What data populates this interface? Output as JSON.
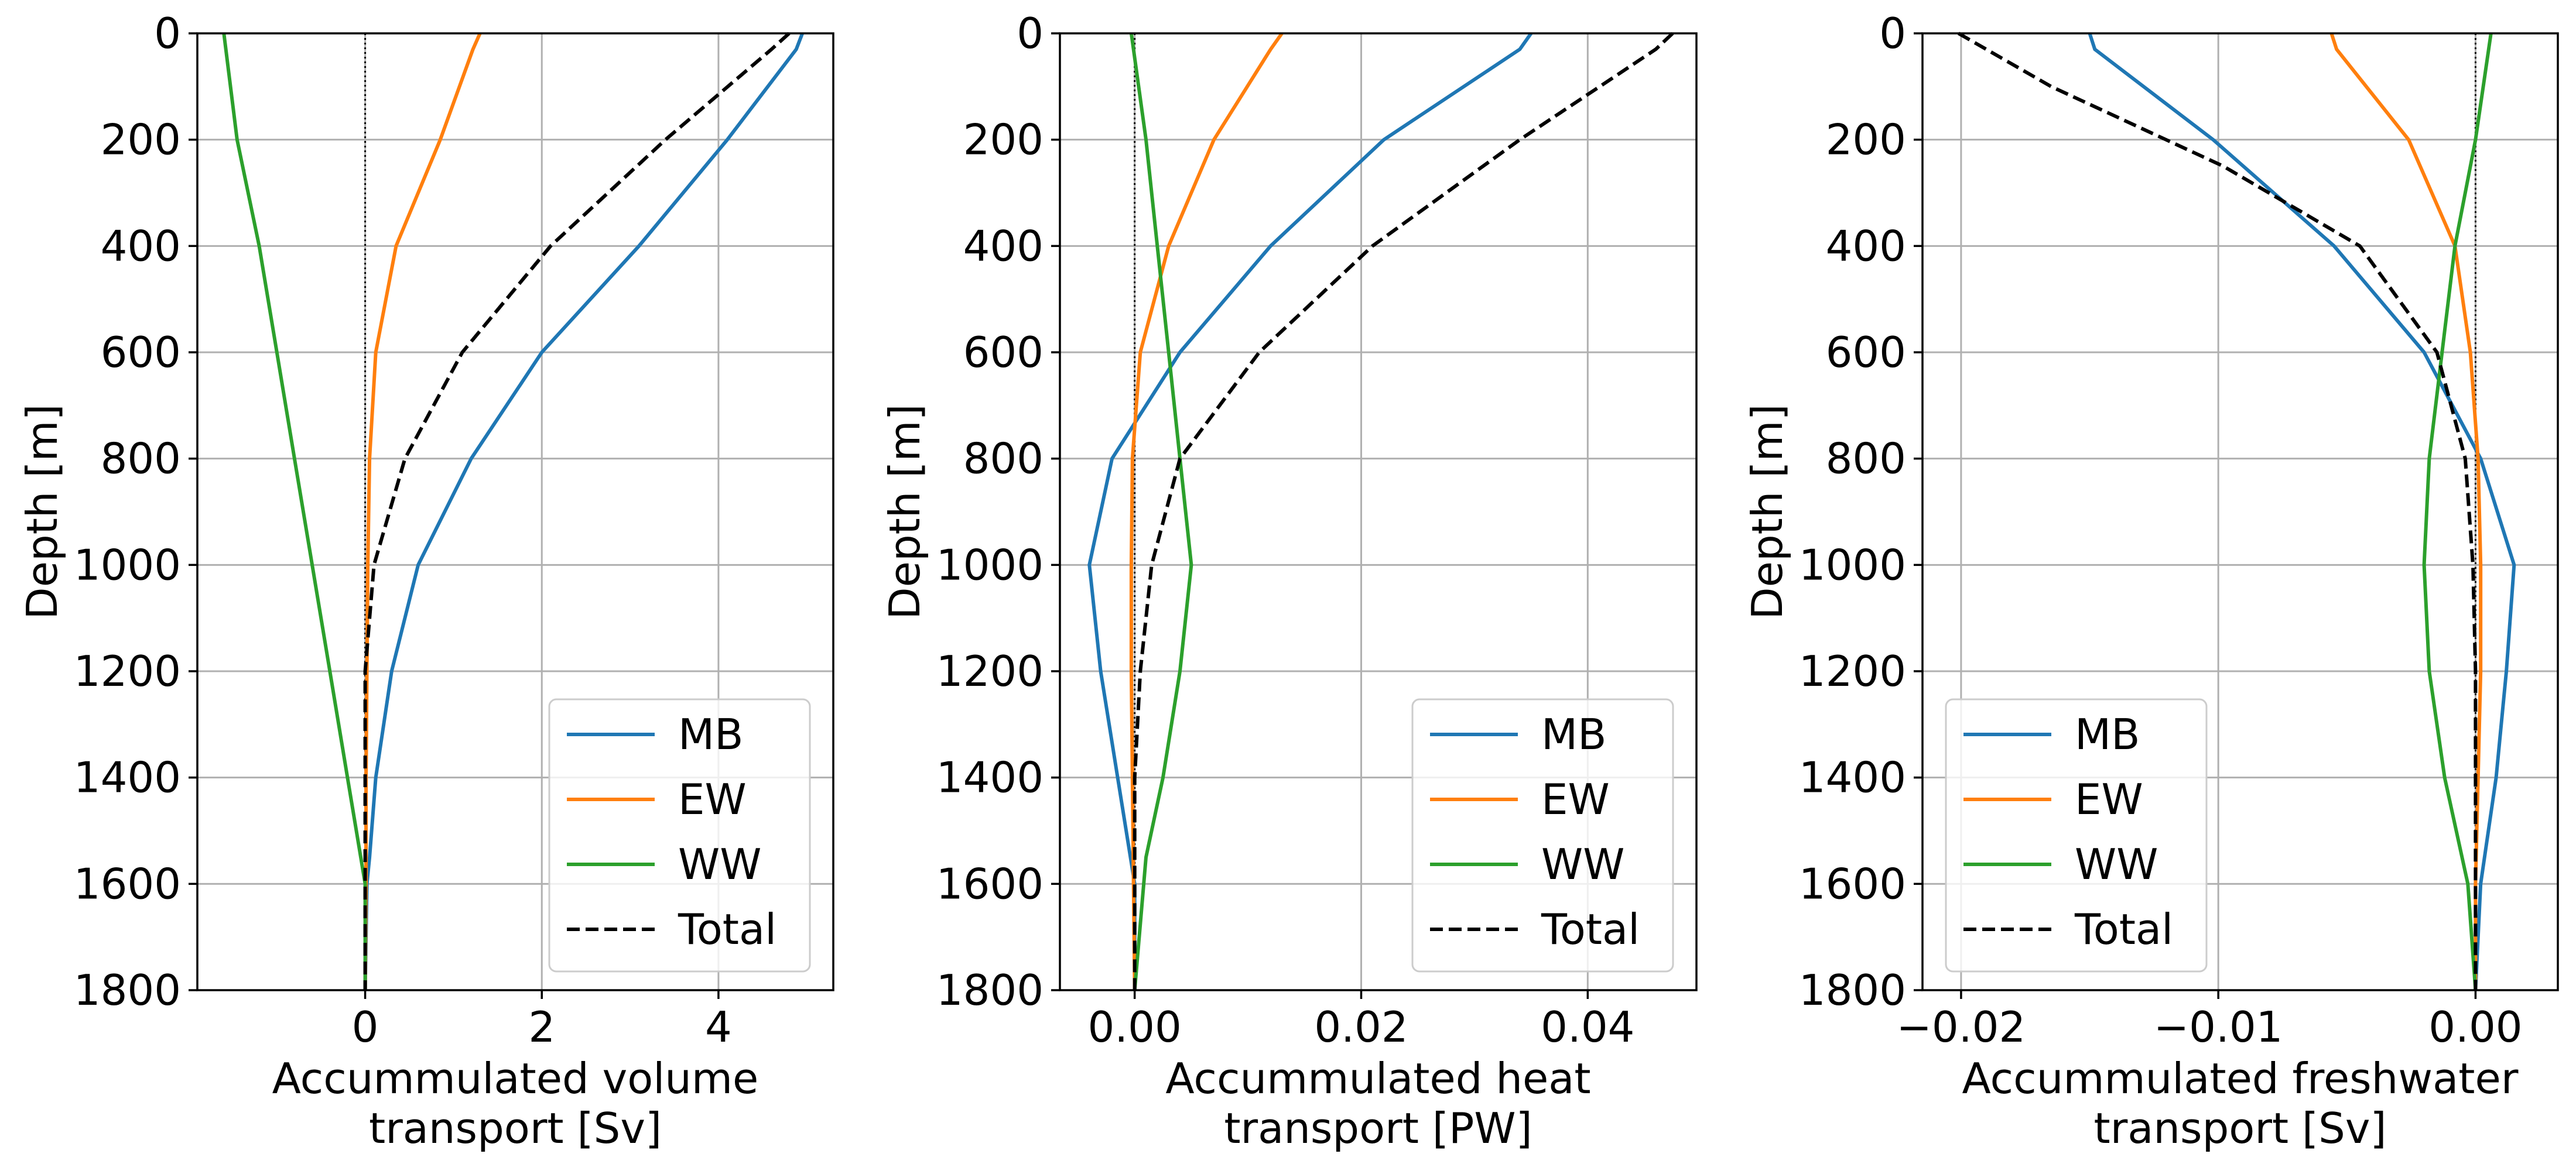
{
  "figure": {
    "panels": 3
  },
  "chart_data": [
    {
      "type": "line",
      "title": "",
      "xlabel": [
        "Accummulated volume",
        "transport [Sv]"
      ],
      "ylabel": "Depth [m]",
      "xlim": [
        -1.9,
        5.3
      ],
      "ylim": [
        1800,
        0
      ],
      "xticks": [
        0,
        2,
        4
      ],
      "xtick_labels": [
        "0",
        "2",
        "4"
      ],
      "yticks": [
        0,
        200,
        400,
        600,
        800,
        1000,
        1200,
        1400,
        1600,
        1800
      ],
      "ytick_labels": [
        "0",
        "200",
        "400",
        "600",
        "800",
        "1000",
        "1200",
        "1400",
        "1600",
        "1800"
      ],
      "grid": true,
      "zero_line_x": 0,
      "legend_position": "bottom-right",
      "series": [
        {
          "name": "MB",
          "color": "#1f77b4",
          "dash": "solid",
          "x": [
            4.95,
            4.88,
            4.1,
            3.1,
            2.0,
            1.2,
            0.6,
            0.3,
            0.12,
            0.05,
            0.02,
            0
          ],
          "y": [
            0,
            30,
            200,
            400,
            600,
            800,
            1000,
            1200,
            1400,
            1550,
            1600,
            1800
          ]
        },
        {
          "name": "EW",
          "color": "#ff7f0e",
          "dash": "solid",
          "x": [
            1.3,
            1.22,
            0.85,
            0.35,
            0.12,
            0.05,
            0.03,
            0.02,
            0.01,
            0.01,
            0
          ],
          "y": [
            0,
            30,
            200,
            400,
            600,
            800,
            1000,
            1200,
            1400,
            1600,
            1800
          ]
        },
        {
          "name": "WW",
          "color": "#2ca02c",
          "dash": "solid",
          "x": [
            -1.6,
            -1.45,
            -1.2,
            -1.0,
            -0.8,
            -0.6,
            -0.4,
            -0.2,
            0,
            0
          ],
          "y": [
            0,
            200,
            400,
            600,
            800,
            1000,
            1200,
            1400,
            1600,
            1800
          ]
        },
        {
          "name": "Total",
          "color": "#000000",
          "dash": "dashed",
          "x": [
            4.8,
            4.6,
            3.4,
            2.1,
            1.1,
            0.45,
            0.1,
            0,
            0,
            0
          ],
          "y": [
            0,
            30,
            200,
            400,
            600,
            800,
            1000,
            1200,
            1400,
            1800
          ]
        }
      ]
    },
    {
      "type": "line",
      "title": "",
      "xlabel": [
        "Accummulated heat",
        "transport [PW]"
      ],
      "ylabel": "Depth [m]",
      "xlim": [
        -0.0066,
        0.0496
      ],
      "ylim": [
        1800,
        0
      ],
      "xticks": [
        0,
        0.02,
        0.04
      ],
      "xtick_labels": [
        "0.00",
        "0.02",
        "0.04"
      ],
      "yticks": [
        0,
        200,
        400,
        600,
        800,
        1000,
        1200,
        1400,
        1600,
        1800
      ],
      "ytick_labels": [
        "0",
        "200",
        "400",
        "600",
        "800",
        "1000",
        "1200",
        "1400",
        "1600",
        "1800"
      ],
      "grid": true,
      "zero_line_x": 0,
      "legend_position": "bottom-right",
      "series": [
        {
          "name": "MB",
          "color": "#1f77b4",
          "dash": "solid",
          "x": [
            0.035,
            0.034,
            0.022,
            0.012,
            0.004,
            -0.002,
            -0.004,
            -0.003,
            -0.0015,
            0,
            0
          ],
          "y": [
            0,
            30,
            200,
            400,
            600,
            800,
            1000,
            1200,
            1400,
            1600,
            1800
          ]
        },
        {
          "name": "EW",
          "color": "#ff7f0e",
          "dash": "solid",
          "x": [
            0.013,
            0.012,
            0.007,
            0.003,
            0.0005,
            -0.0002,
            -0.0003,
            -0.0003,
            -0.0002,
            -0.0001,
            0
          ],
          "y": [
            0,
            30,
            200,
            400,
            600,
            800,
            1000,
            1200,
            1400,
            1600,
            1800
          ]
        },
        {
          "name": "WW",
          "color": "#2ca02c",
          "dash": "solid",
          "x": [
            -0.0003,
            0.001,
            0.002,
            0.003,
            0.004,
            0.005,
            0.004,
            0.0025,
            0.001,
            0
          ],
          "y": [
            0,
            200,
            400,
            600,
            800,
            1000,
            1200,
            1400,
            1550,
            1800
          ]
        },
        {
          "name": "Total",
          "color": "#000000",
          "dash": "dashed",
          "x": [
            0.0475,
            0.046,
            0.034,
            0.021,
            0.011,
            0.004,
            0.0015,
            0.0005,
            0,
            0,
            0
          ],
          "y": [
            0,
            30,
            200,
            400,
            600,
            800,
            1000,
            1200,
            1400,
            1600,
            1800
          ]
        }
      ]
    },
    {
      "type": "line",
      "title": "",
      "xlabel": [
        "Accummulated freshwater",
        "transport [Sv]"
      ],
      "ylabel": "Depth [m]",
      "xlim": [
        -0.0215,
        0.0032
      ],
      "ylim": [
        1800,
        0
      ],
      "xticks": [
        -0.02,
        -0.01,
        0
      ],
      "xtick_labels": [
        "−0.02",
        "−0.01",
        "0.00"
      ],
      "yticks": [
        0,
        200,
        400,
        600,
        800,
        1000,
        1200,
        1400,
        1600,
        1800
      ],
      "ytick_labels": [
        "0",
        "200",
        "400",
        "600",
        "800",
        "1000",
        "1200",
        "1400",
        "1600",
        "1800"
      ],
      "grid": true,
      "zero_line_x": 0,
      "legend_position": "bottom-left",
      "series": [
        {
          "name": "MB",
          "color": "#1f77b4",
          "dash": "solid",
          "x": [
            -0.015,
            -0.0148,
            -0.0102,
            -0.0055,
            -0.002,
            0.0002,
            0.0015,
            0.0012,
            0.0008,
            0.0002,
            0
          ],
          "y": [
            0,
            30,
            200,
            400,
            600,
            800,
            1000,
            1200,
            1400,
            1600,
            1800
          ]
        },
        {
          "name": "EW",
          "color": "#ff7f0e",
          "dash": "solid",
          "x": [
            -0.0056,
            -0.0054,
            -0.0026,
            -0.0008,
            -0.0002,
            0.0001,
            0.0002,
            0.0002,
            0.0001,
            0,
            0
          ],
          "y": [
            0,
            30,
            200,
            400,
            600,
            800,
            1000,
            1200,
            1400,
            1600,
            1800
          ]
        },
        {
          "name": "WW",
          "color": "#2ca02c",
          "dash": "solid",
          "x": [
            0.0006,
            0,
            -0.0008,
            -0.0013,
            -0.0018,
            -0.002,
            -0.0018,
            -0.0012,
            -0.0003,
            0
          ],
          "y": [
            0,
            200,
            400,
            600,
            800,
            1000,
            1200,
            1400,
            1600,
            1800
          ]
        },
        {
          "name": "Total",
          "color": "#000000",
          "dash": "dashed",
          "x": [
            -0.0201,
            -0.0165,
            -0.0098,
            -0.0045,
            -0.0015,
            -0.0004,
            -0.0001,
            0,
            0,
            0
          ],
          "y": [
            0,
            100,
            250,
            400,
            600,
            800,
            1000,
            1200,
            1400,
            1800
          ]
        }
      ]
    }
  ]
}
